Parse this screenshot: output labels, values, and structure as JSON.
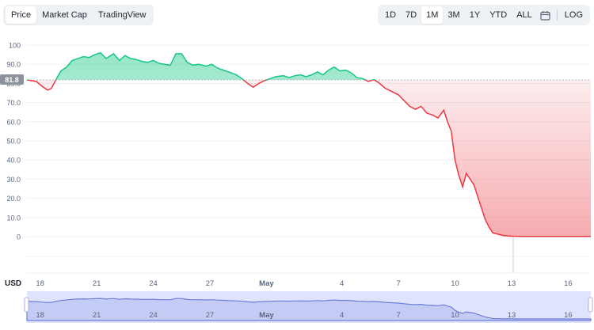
{
  "tabs": [
    {
      "label": "Price",
      "active": true
    },
    {
      "label": "Market Cap",
      "active": false
    },
    {
      "label": "TradingView",
      "active": false
    }
  ],
  "ranges": [
    {
      "label": "1D",
      "active": false
    },
    {
      "label": "7D",
      "active": false
    },
    {
      "label": "1M",
      "active": true
    },
    {
      "label": "3M",
      "active": false
    },
    {
      "label": "1Y",
      "active": false
    },
    {
      "label": "YTD",
      "active": false
    },
    {
      "label": "ALL",
      "active": false
    }
  ],
  "calendar_icon": "calendar-icon",
  "log_label": "LOG",
  "colors": {
    "up": "#16c784",
    "down": "#ea3943",
    "navigator": "#6f7ed8",
    "ref_tag": "#8c929b"
  },
  "chart_data": {
    "type": "area",
    "currency_label": "USD",
    "reference_value": 81.8,
    "reference_label": "81.8",
    "y_ticks": [
      "100",
      "90.0",
      "80.0",
      "70.0",
      "60.0",
      "50.0",
      "40.0",
      "30.0",
      "20.0",
      "10.0",
      "0"
    ],
    "ylim": [
      -10,
      100
    ],
    "x_ticks": [
      "18",
      "21",
      "24",
      "27",
      "May",
      "4",
      "7",
      "10",
      "13",
      "16"
    ],
    "x_tick_positions": [
      18,
      21,
      24,
      27,
      30,
      34,
      37,
      40,
      43,
      46
    ],
    "xlim": [
      17.3,
      47.2
    ],
    "grid": true,
    "series": [
      {
        "x": [
          17.3,
          17.8,
          18.1,
          18.4,
          18.6,
          18.9,
          19.1,
          19.4,
          19.7,
          20.0,
          20.3,
          20.6,
          20.9,
          21.2,
          21.5,
          21.9,
          22.2,
          22.5,
          22.8,
          23.1,
          23.4,
          23.7,
          24.0,
          24.3,
          24.6,
          24.9,
          25.2,
          25.5,
          25.8,
          26.1,
          26.4,
          26.8,
          27.1,
          27.4,
          27.7,
          28.0,
          28.4,
          28.7,
          29.0,
          29.3,
          29.6,
          29.9,
          30.2,
          30.5,
          30.9,
          31.2,
          31.5,
          31.8,
          32.1,
          32.4,
          32.7,
          33.0,
          33.3,
          33.6,
          33.9,
          34.2,
          34.5,
          34.8,
          35.1,
          35.4,
          35.7,
          36.0,
          36.3,
          36.6,
          37.0,
          37.3,
          37.6,
          37.9,
          38.2,
          38.5,
          38.8,
          39.1,
          39.4,
          39.6,
          39.8,
          40.0,
          40.2,
          40.4,
          40.6,
          40.8,
          41.0,
          41.2,
          41.4,
          41.6,
          41.8,
          42.0,
          42.3,
          42.6,
          43.0,
          43.5,
          44.0,
          44.5,
          45.0,
          45.5,
          46.0,
          46.5,
          47.2
        ],
        "y": [
          81.8,
          81.0,
          78.5,
          76.5,
          77.5,
          83.0,
          86.5,
          88.5,
          92.0,
          93.0,
          94.0,
          93.5,
          95.0,
          96.0,
          93.0,
          95.5,
          92.0,
          94.5,
          93.0,
          92.5,
          91.5,
          91.0,
          92.0,
          90.5,
          90.0,
          89.5,
          95.5,
          95.5,
          91.0,
          89.5,
          90.0,
          89.0,
          90.0,
          88.0,
          87.0,
          86.0,
          84.5,
          82.5,
          80.0,
          78.0,
          80.0,
          81.5,
          82.5,
          83.5,
          84.0,
          83.0,
          84.0,
          84.5,
          83.5,
          84.5,
          86.0,
          84.5,
          87.0,
          88.5,
          86.5,
          87.0,
          85.5,
          83.0,
          82.5,
          81.0,
          82.0,
          80.0,
          77.5,
          76.0,
          74.0,
          71.0,
          68.0,
          66.5,
          68.0,
          64.5,
          63.5,
          62.0,
          66.0,
          60.0,
          55.0,
          40.0,
          32.0,
          26.0,
          33.0,
          30.0,
          27.0,
          21.0,
          15.0,
          9.0,
          5.0,
          2.0,
          1.2,
          0.5,
          0.2,
          0.1,
          0.1,
          0.1,
          0.1,
          0.1,
          0.1,
          0.1,
          0.1
        ]
      }
    ]
  }
}
